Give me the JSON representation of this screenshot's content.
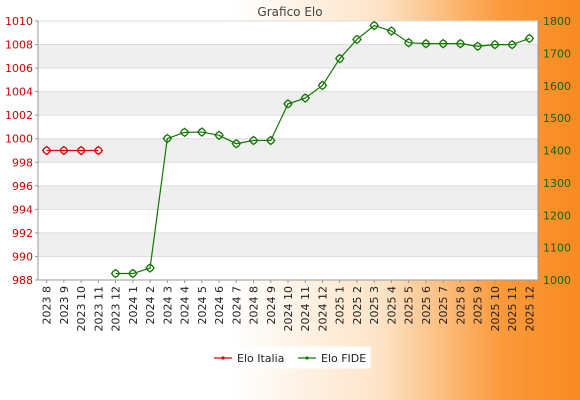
{
  "chart_data": {
    "type": "line",
    "title": "Grafico Elo",
    "categories": [
      "2023 8",
      "2023 9",
      "2023 10",
      "2023 11",
      "2023 12",
      "2024 1",
      "2024 2",
      "2024 3",
      "2024 4",
      "2024 5",
      "2024 6",
      "2024 7",
      "2024 8",
      "2024 9",
      "2024 10",
      "2024 11",
      "2024 12",
      "2025 1",
      "2025 2",
      "2025 3",
      "2025 4",
      "2025 5",
      "2025 6",
      "2025 7",
      "2025 8",
      "2025 9",
      "2025 10",
      "2025 11",
      "2025 12"
    ],
    "left_axis": {
      "ylim": [
        988,
        1010
      ],
      "ticks": [
        "988",
        "990",
        "992",
        "994",
        "996",
        "998",
        "1000",
        "1002",
        "1004",
        "1006",
        "1008",
        "1010"
      ],
      "color": "#cc0000"
    },
    "right_axis": {
      "ylim": [
        1000,
        1800
      ],
      "ticks": [
        "1000",
        "1100",
        "1200",
        "1300",
        "1400",
        "1500",
        "1600",
        "1700",
        "1800"
      ],
      "color": "#116600"
    },
    "series": [
      {
        "name": "Elo Italia",
        "axis": "left",
        "color": "#dd0000",
        "values": [
          999,
          999,
          999,
          999,
          null,
          null,
          null,
          null,
          null,
          null,
          null,
          null,
          null,
          null,
          null,
          null,
          null,
          null,
          null,
          null,
          null,
          null,
          null,
          null,
          null,
          null,
          null,
          null,
          null
        ]
      },
      {
        "name": "Elo FIDE",
        "axis": "right",
        "color": "#117700",
        "values": [
          null,
          null,
          null,
          null,
          1020,
          1020,
          1037,
          1437,
          1456,
          1457,
          1447,
          1421,
          1431,
          1431,
          1544,
          1562,
          1601,
          1684,
          1743,
          1786,
          1769,
          1733,
          1730,
          1730,
          1730,
          1722,
          1727,
          1727,
          1746
        ]
      }
    ],
    "grid": true,
    "legend_position": "bottom"
  }
}
